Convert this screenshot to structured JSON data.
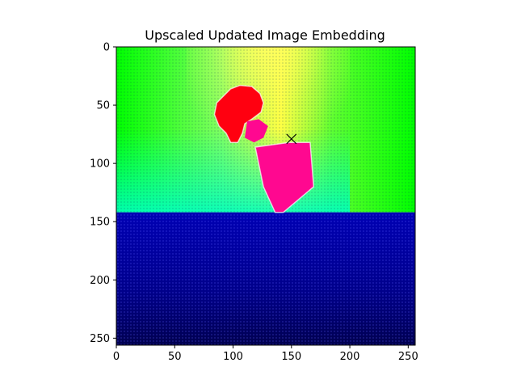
{
  "chart_data": {
    "type": "heatmap",
    "title": "Upscaled Updated Image Embedding",
    "xlabel": "",
    "ylabel": "",
    "xlim": [
      0,
      256
    ],
    "ylim": [
      256,
      0
    ],
    "xticks": [
      0,
      50,
      100,
      150,
      200,
      250
    ],
    "yticks": [
      0,
      50,
      100,
      150,
      200,
      250
    ],
    "grid": false,
    "legend": "none",
    "colors": {
      "upper_green": "#00ff00",
      "upper_cyan": "#00ffb0",
      "yellow_glow": "#ffff40",
      "lower_blue": "#0000a0",
      "lower_dark": "#000040",
      "object_red": "#ff0010",
      "object_pink": "#ff0890"
    },
    "boundary_row": 142,
    "marker": {
      "symbol": "x",
      "x": 150,
      "y": 79,
      "color": "#000000"
    }
  }
}
